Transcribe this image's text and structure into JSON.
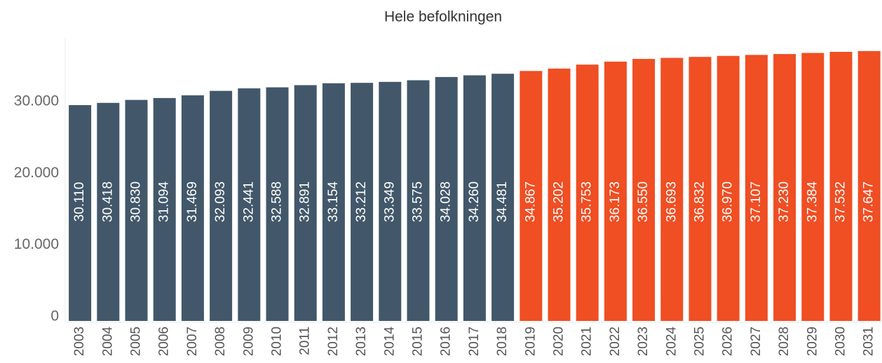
{
  "chart_data": {
    "type": "bar",
    "title": "Hele befolkningen",
    "categories": [
      "2003",
      "2004",
      "2005",
      "2006",
      "2007",
      "2008",
      "2009",
      "2010",
      "2011",
      "2012",
      "2013",
      "2014",
      "2015",
      "2016",
      "2017",
      "2018",
      "2019",
      "2020",
      "2021",
      "2022",
      "2023",
      "2024",
      "2025",
      "2026",
      "2027",
      "2028",
      "2029",
      "2030",
      "2031"
    ],
    "values": [
      30110,
      30418,
      30830,
      31094,
      31469,
      32093,
      32441,
      32588,
      32891,
      33154,
      33212,
      33349,
      33575,
      34028,
      34260,
      34481,
      34867,
      35202,
      35753,
      36173,
      36550,
      36693,
      36832,
      36970,
      37107,
      37230,
      37384,
      37532,
      37647
    ],
    "value_labels": [
      "30.110",
      "30.418",
      "30.830",
      "31.094",
      "31.469",
      "32.093",
      "32.441",
      "32.588",
      "32.891",
      "33.154",
      "33.212",
      "33.349",
      "33.575",
      "34.028",
      "34.260",
      "34.481",
      "34.867",
      "35.202",
      "35.753",
      "36.173",
      "36.550",
      "36.693",
      "36.832",
      "36.970",
      "37.107",
      "37.230",
      "37.384",
      "37.532",
      "37.647"
    ],
    "colors": [
      "#42586a",
      "#42586a",
      "#42586a",
      "#42586a",
      "#42586a",
      "#42586a",
      "#42586a",
      "#42586a",
      "#42586a",
      "#42586a",
      "#42586a",
      "#42586a",
      "#42586a",
      "#42586a",
      "#42586a",
      "#42586a",
      "#f04e23",
      "#f04e23",
      "#f04e23",
      "#f04e23",
      "#f04e23",
      "#f04e23",
      "#f04e23",
      "#f04e23",
      "#f04e23",
      "#f04e23",
      "#f04e23",
      "#f04e23",
      "#f04e23"
    ],
    "ylim": [
      0,
      39000
    ],
    "yticks": [
      0,
      {
        "value": 10000,
        "label": "10.000"
      },
      {
        "value": 20000,
        "label": "20.000"
      },
      {
        "value": 30000,
        "label": "30.000"
      }
    ],
    "grid": false
  }
}
